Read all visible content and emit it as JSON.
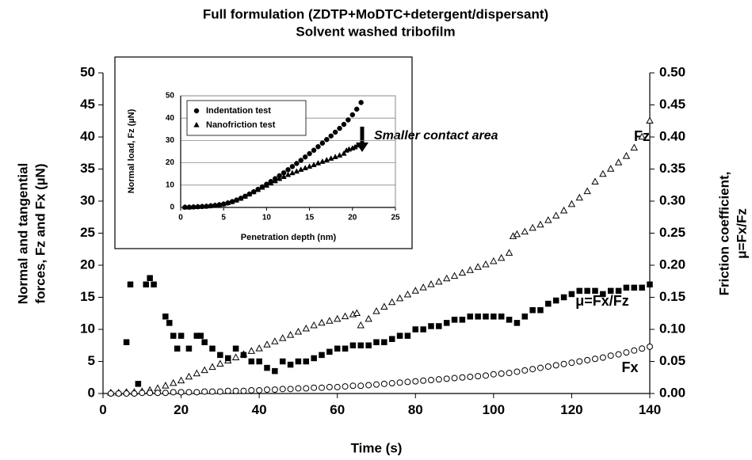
{
  "chart_data": [
    {
      "type": "scatter",
      "title": [
        "Full formulation (ZDTP+MoDTC+detergent/dispersant)",
        "Solvent washed tribofilm"
      ],
      "x_label": "Time (s)",
      "y_label": [
        "Normal and tangential",
        "forces, Fz and Fx (µN)"
      ],
      "y2_label": [
        "Friction coefficient,",
        "μ=Fx/Fz"
      ],
      "xlim": [
        0,
        140
      ],
      "xticks": [
        0,
        20,
        40,
        60,
        80,
        100,
        120,
        140
      ],
      "ylim": [
        0,
        50
      ],
      "yticks": [
        0,
        5,
        10,
        15,
        20,
        25,
        30,
        35,
        40,
        45,
        50
      ],
      "y2lim": [
        0,
        0.5
      ],
      "y2ticks": [
        {
          "value": 0,
          "label": "0.00"
        },
        {
          "value": 0.05,
          "label": "0.05"
        },
        {
          "value": 0.1,
          "label": "0.10"
        },
        {
          "value": 0.15,
          "label": "0.15"
        },
        {
          "value": 0.2,
          "label": "0.20"
        },
        {
          "value": 0.25,
          "label": "0.25"
        },
        {
          "value": 0.3,
          "label": "0.30"
        },
        {
          "value": 0.35,
          "label": "0.35"
        },
        {
          "value": 0.4,
          "label": "0.40"
        },
        {
          "value": 0.45,
          "label": "0.45"
        },
        {
          "value": 0.5,
          "label": "0.50"
        }
      ],
      "grid": false,
      "annotations": [
        "Fz",
        "μ=Fx/Fz",
        "Fx"
      ],
      "series": [
        {
          "marker": "triangle-open",
          "color": "#000000",
          "x": [
            2,
            4,
            6,
            8,
            10,
            12,
            14,
            16,
            18,
            20,
            22,
            24,
            26,
            28,
            30,
            32,
            34,
            36,
            38,
            40,
            42,
            44,
            46,
            48,
            50,
            52,
            54,
            56,
            58,
            60,
            62,
            64,
            65,
            66,
            68,
            70,
            72,
            74,
            76,
            78,
            80,
            82,
            84,
            86,
            88,
            90,
            92,
            94,
            96,
            98,
            100,
            102,
            104,
            105,
            106,
            108,
            110,
            112,
            114,
            116,
            118,
            120,
            122,
            124,
            126,
            128,
            130,
            132,
            134,
            136,
            138,
            140
          ],
          "values": [
            0.1,
            0.1,
            0.2,
            0.2,
            0.3,
            0.5,
            0.8,
            1.2,
            1.6,
            2,
            2.6,
            3.1,
            3.6,
            4.1,
            4.6,
            5.1,
            5.6,
            6.1,
            6.6,
            7,
            7.6,
            8.1,
            8.6,
            9.1,
            9.6,
            10.1,
            10.6,
            11,
            11.3,
            11.6,
            12,
            12.3,
            12.5,
            10.6,
            11.6,
            12.8,
            13.5,
            14.2,
            14.8,
            15.4,
            16,
            16.5,
            17,
            17.4,
            17.9,
            18.3,
            18.8,
            19.2,
            19.7,
            20.1,
            20.6,
            21.1,
            21.9,
            24.5,
            24.8,
            25.2,
            25.8,
            26.3,
            27,
            27.7,
            28.5,
            29.5,
            30.5,
            31.5,
            33,
            34.2,
            35,
            36,
            37,
            38.3,
            40,
            42.5
          ]
        },
        {
          "marker": "circle-open",
          "color": "#000000",
          "x": [
            2,
            4,
            6,
            8,
            10,
            12,
            14,
            16,
            18,
            20,
            22,
            24,
            26,
            28,
            30,
            32,
            34,
            36,
            38,
            40,
            42,
            44,
            46,
            48,
            50,
            52,
            54,
            56,
            58,
            60,
            62,
            64,
            66,
            68,
            70,
            72,
            74,
            76,
            78,
            80,
            82,
            84,
            86,
            88,
            90,
            92,
            94,
            96,
            98,
            100,
            102,
            104,
            106,
            108,
            110,
            112,
            114,
            116,
            118,
            120,
            122,
            124,
            126,
            128,
            130,
            132,
            134,
            136,
            138,
            140
          ],
          "values": [
            0,
            0,
            0,
            0,
            0.1,
            0.1,
            0.1,
            0.1,
            0.2,
            0.2,
            0.2,
            0.2,
            0.3,
            0.3,
            0.3,
            0.4,
            0.4,
            0.4,
            0.5,
            0.5,
            0.6,
            0.6,
            0.7,
            0.7,
            0.8,
            0.8,
            0.9,
            0.9,
            1,
            1,
            1.1,
            1.2,
            1.2,
            1.3,
            1.4,
            1.5,
            1.6,
            1.7,
            1.8,
            1.9,
            2,
            2.1,
            2.2,
            2.3,
            2.4,
            2.5,
            2.6,
            2.7,
            2.8,
            3,
            3.1,
            3.2,
            3.4,
            3.6,
            3.8,
            4,
            4.2,
            4.4,
            4.6,
            4.8,
            5,
            5.2,
            5.4,
            5.6,
            5.9,
            6.1,
            6.4,
            6.7,
            7,
            7.3
          ]
        },
        {
          "marker": "square",
          "color": "#000000",
          "axis": "y2",
          "x": [
            6,
            7,
            9,
            11,
            12,
            13,
            16,
            17,
            18,
            19,
            20,
            22,
            24,
            25,
            26,
            28,
            30,
            32,
            34,
            36,
            38,
            40,
            42,
            44,
            46,
            48,
            50,
            52,
            54,
            56,
            58,
            60,
            62,
            64,
            66,
            68,
            70,
            72,
            74,
            76,
            78,
            80,
            82,
            84,
            86,
            88,
            90,
            92,
            94,
            96,
            98,
            100,
            102,
            104,
            106,
            108,
            110,
            112,
            114,
            116,
            118,
            120,
            122,
            124,
            126,
            128,
            130,
            132,
            134,
            136,
            138,
            140
          ],
          "values": [
            0.08,
            0.17,
            0.015,
            0.17,
            0.18,
            0.17,
            0.12,
            0.11,
            0.09,
            0.07,
            0.09,
            0.07,
            0.09,
            0.09,
            0.08,
            0.07,
            0.06,
            0.055,
            0.07,
            0.06,
            0.05,
            0.05,
            0.04,
            0.035,
            0.05,
            0.045,
            0.05,
            0.05,
            0.055,
            0.06,
            0.065,
            0.07,
            0.07,
            0.075,
            0.075,
            0.075,
            0.08,
            0.08,
            0.085,
            0.09,
            0.09,
            0.1,
            0.1,
            0.105,
            0.105,
            0.11,
            0.115,
            0.115,
            0.12,
            0.12,
            0.12,
            0.12,
            0.12,
            0.115,
            0.11,
            0.12,
            0.13,
            0.13,
            0.14,
            0.145,
            0.15,
            0.155,
            0.16,
            0.16,
            0.16,
            0.155,
            0.16,
            0.16,
            0.165,
            0.165,
            0.165,
            0.17
          ]
        }
      ]
    },
    {
      "type": "scatter",
      "title": "Smaller contact area",
      "x_label": "Penetration depth (nm)",
      "y_label": "Normal load, Fz (µN)",
      "xlim": [
        0,
        25
      ],
      "xticks": [
        0,
        5,
        10,
        15,
        20,
        25
      ],
      "ylim": [
        0,
        50
      ],
      "yticks": [
        0,
        10,
        20,
        30,
        40,
        50
      ],
      "grid": true,
      "legend": "upper-left",
      "series": [
        {
          "name": "Indentation test",
          "marker": "circle",
          "color": "#000000",
          "x": [
            0.5,
            1,
            1.5,
            2,
            2.5,
            3,
            3.5,
            4,
            4.5,
            5,
            5.5,
            6,
            6.5,
            7,
            7.5,
            8,
            8.5,
            9,
            9.5,
            10,
            10.5,
            11,
            11.5,
            12,
            12.5,
            13,
            13.5,
            14,
            14.5,
            15,
            15.5,
            16,
            16.5,
            17,
            17.5,
            18,
            18.5,
            19,
            19.5,
            20,
            20.5,
            21
          ],
          "values": [
            0.1,
            0.1,
            0.2,
            0.3,
            0.4,
            0.5,
            0.7,
            0.9,
            1.2,
            1.5,
            2,
            2.6,
            3.3,
            4.1,
            5,
            6,
            7,
            8.1,
            9.2,
            10.4,
            11.6,
            12.9,
            14.2,
            15.5,
            16.9,
            18.3,
            19.7,
            21.1,
            22.6,
            24.1,
            25.6,
            27.2,
            28.8,
            30.4,
            32,
            33.7,
            35.4,
            37.2,
            39.2,
            41.5,
            44,
            47
          ]
        },
        {
          "name": "Nanofriction test",
          "marker": "triangle",
          "color": "#000000",
          "x": [
            0.5,
            1,
            1.5,
            2,
            2.5,
            3,
            3.5,
            4,
            4.5,
            5,
            5.5,
            6,
            6.5,
            7,
            7.5,
            8,
            8.5,
            9,
            9.5,
            10,
            10.5,
            11,
            11.5,
            12,
            12.5,
            13,
            13.5,
            14,
            14.5,
            15,
            15.5,
            16,
            16.5,
            17,
            17.5,
            18,
            18.5,
            19,
            19.3,
            19.6,
            20,
            20.3,
            20.6,
            21
          ],
          "values": [
            0.1,
            0.1,
            0.2,
            0.3,
            0.4,
            0.5,
            0.7,
            0.9,
            1.2,
            1.5,
            2,
            2.5,
            3.2,
            4,
            4.9,
            5.9,
            6.9,
            7.9,
            8.9,
            9.8,
            10.8,
            11.8,
            12.8,
            13.7,
            14.6,
            15.4,
            16.1,
            16.9,
            17.6,
            18.3,
            19,
            19.8,
            20.5,
            21.2,
            21.9,
            22.6,
            23.3,
            24.1,
            25.5,
            26,
            26.5,
            27,
            27.8,
            28.5
          ]
        }
      ]
    }
  ]
}
